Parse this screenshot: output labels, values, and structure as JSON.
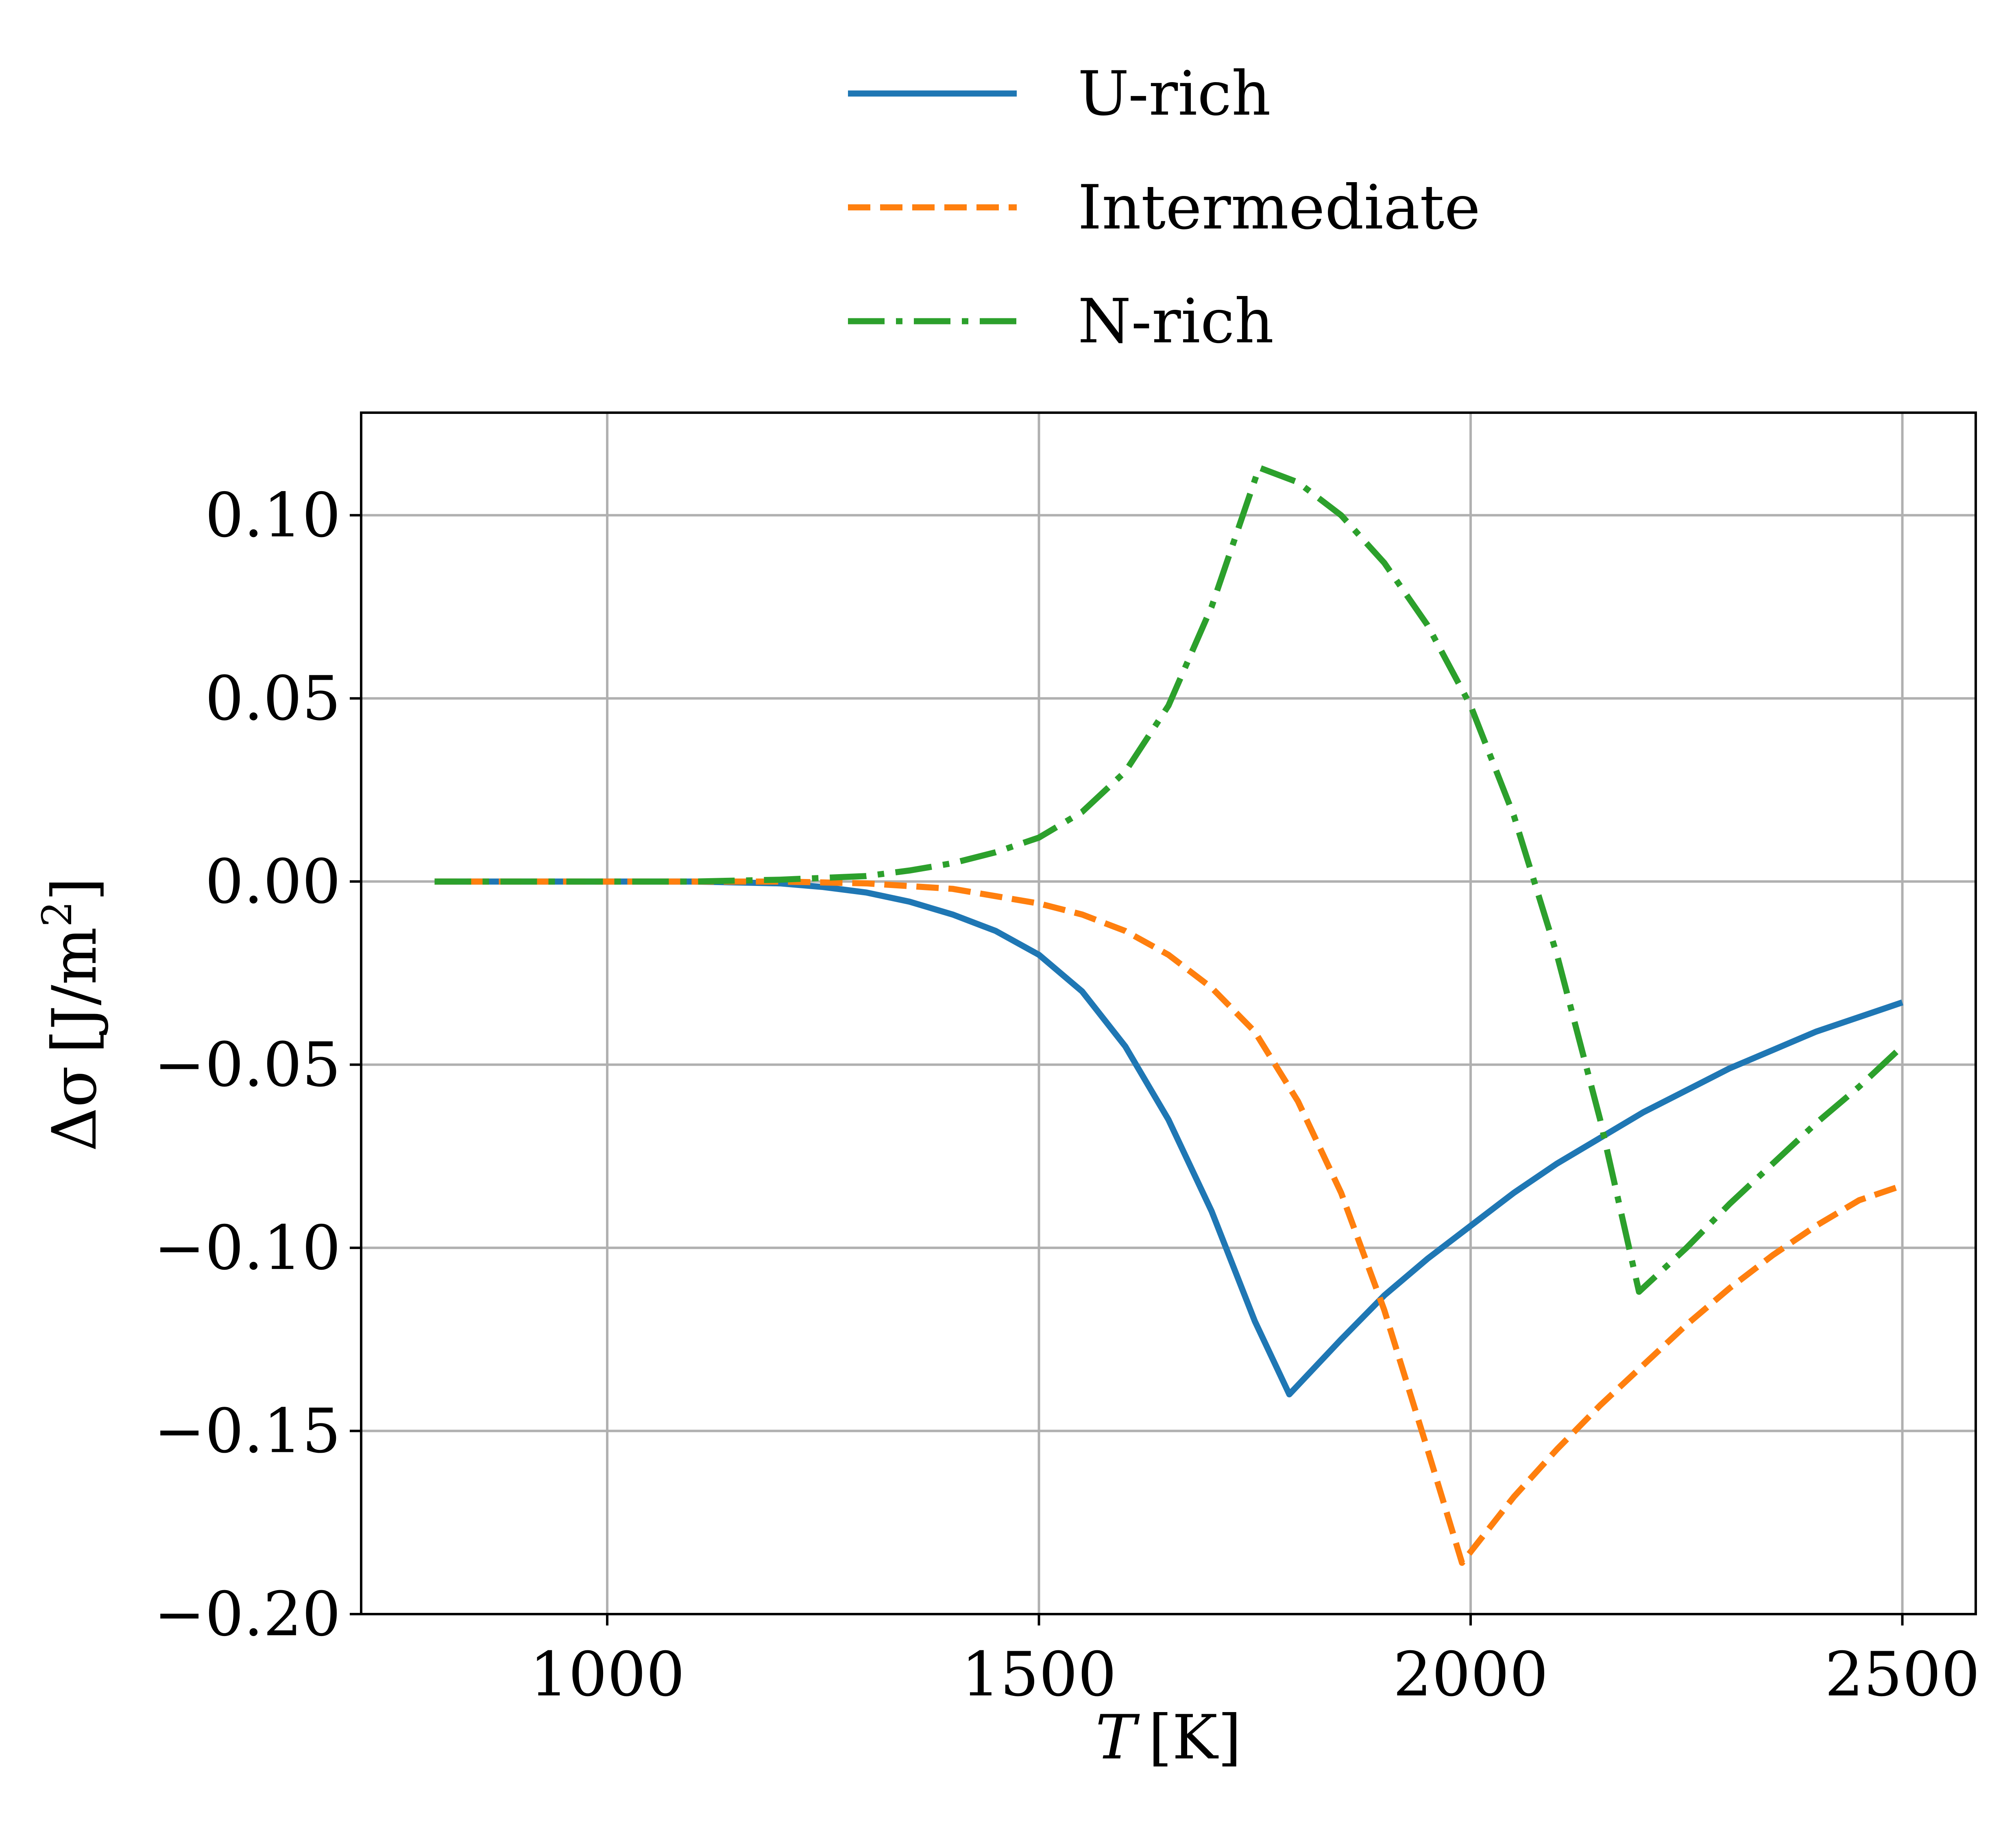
{
  "chart_data": {
    "type": "line",
    "title": "",
    "xlabel": "T [K]",
    "xlabel_var": "T",
    "xlabel_unit": "[K]",
    "ylabel": "Δσ [J/m²]",
    "ylabel_var": "Δσ",
    "ylabel_unit": "[J/m",
    "ylabel_sup": "2",
    "ylabel_close": "]",
    "xlim": [
      715,
      2585
    ],
    "ylim": [
      -0.2,
      0.128
    ],
    "xticks": [
      1000,
      1500,
      2000,
      2500
    ],
    "xtick_labels": [
      "1000",
      "1500",
      "2000",
      "2500"
    ],
    "yticks": [
      0.1,
      0.05,
      0.0,
      -0.05,
      -0.1,
      -0.15,
      -0.2
    ],
    "ytick_labels": [
      "0.10",
      "0.05",
      "0.00",
      "−0.05",
      "−0.10",
      "−0.15",
      "−0.20"
    ],
    "grid": true,
    "legend_position": "top-center-outside",
    "series": [
      {
        "name": "U-rich",
        "color": "#1f77b4",
        "dash": "solid",
        "x": [
          800,
          900,
          1000,
          1100,
          1200,
          1250,
          1300,
          1350,
          1400,
          1450,
          1500,
          1550,
          1600,
          1650,
          1700,
          1750,
          1790,
          1850,
          1900,
          1950,
          2000,
          2050,
          2100,
          2150,
          2200,
          2250,
          2300,
          2350,
          2400,
          2450,
          2500
        ],
        "y": [
          0.0,
          0.0,
          0.0,
          0.0,
          -0.0005,
          -0.0015,
          -0.003,
          -0.0055,
          -0.009,
          -0.0135,
          -0.02,
          -0.03,
          -0.045,
          -0.065,
          -0.09,
          -0.12,
          -0.14,
          -0.125,
          -0.113,
          -0.103,
          -0.094,
          -0.085,
          -0.077,
          -0.07,
          -0.063,
          -0.057,
          -0.051,
          -0.046,
          -0.041,
          -0.037,
          -0.033
        ]
      },
      {
        "name": "Intermediate",
        "color": "#ff7f0e",
        "dash": "dashed",
        "x": [
          800,
          900,
          1000,
          1100,
          1200,
          1300,
          1400,
          1450,
          1500,
          1550,
          1600,
          1650,
          1700,
          1750,
          1800,
          1850,
          1900,
          1950,
          1990,
          2050,
          2100,
          2150,
          2200,
          2250,
          2300,
          2350,
          2400,
          2450,
          2500
        ],
        "y": [
          0.0,
          0.0,
          0.0,
          0.0,
          0.0,
          -0.0005,
          -0.002,
          -0.004,
          -0.006,
          -0.009,
          -0.0135,
          -0.02,
          -0.029,
          -0.041,
          -0.06,
          -0.085,
          -0.117,
          -0.155,
          -0.186,
          -0.168,
          -0.155,
          -0.143,
          -0.132,
          -0.121,
          -0.111,
          -0.102,
          -0.094,
          -0.087,
          -0.083
        ]
      },
      {
        "name": "N-rich",
        "color": "#2ca02c",
        "dash": "dashdot",
        "x": [
          800,
          900,
          1000,
          1100,
          1200,
          1250,
          1300,
          1350,
          1400,
          1450,
          1500,
          1550,
          1600,
          1650,
          1700,
          1755,
          1800,
          1850,
          1900,
          1950,
          2000,
          2050,
          2100,
          2150,
          2195,
          2250,
          2300,
          2350,
          2400,
          2450,
          2500
        ],
        "y": [
          0.0,
          0.0,
          0.0,
          0.0,
          0.0005,
          0.001,
          0.0015,
          0.003,
          0.005,
          0.008,
          0.012,
          0.019,
          0.03,
          0.048,
          0.075,
          0.113,
          0.109,
          0.1,
          0.087,
          0.07,
          0.048,
          0.018,
          -0.02,
          -0.065,
          -0.112,
          -0.1,
          -0.088,
          -0.077,
          -0.066,
          -0.056,
          -0.045
        ]
      }
    ]
  }
}
